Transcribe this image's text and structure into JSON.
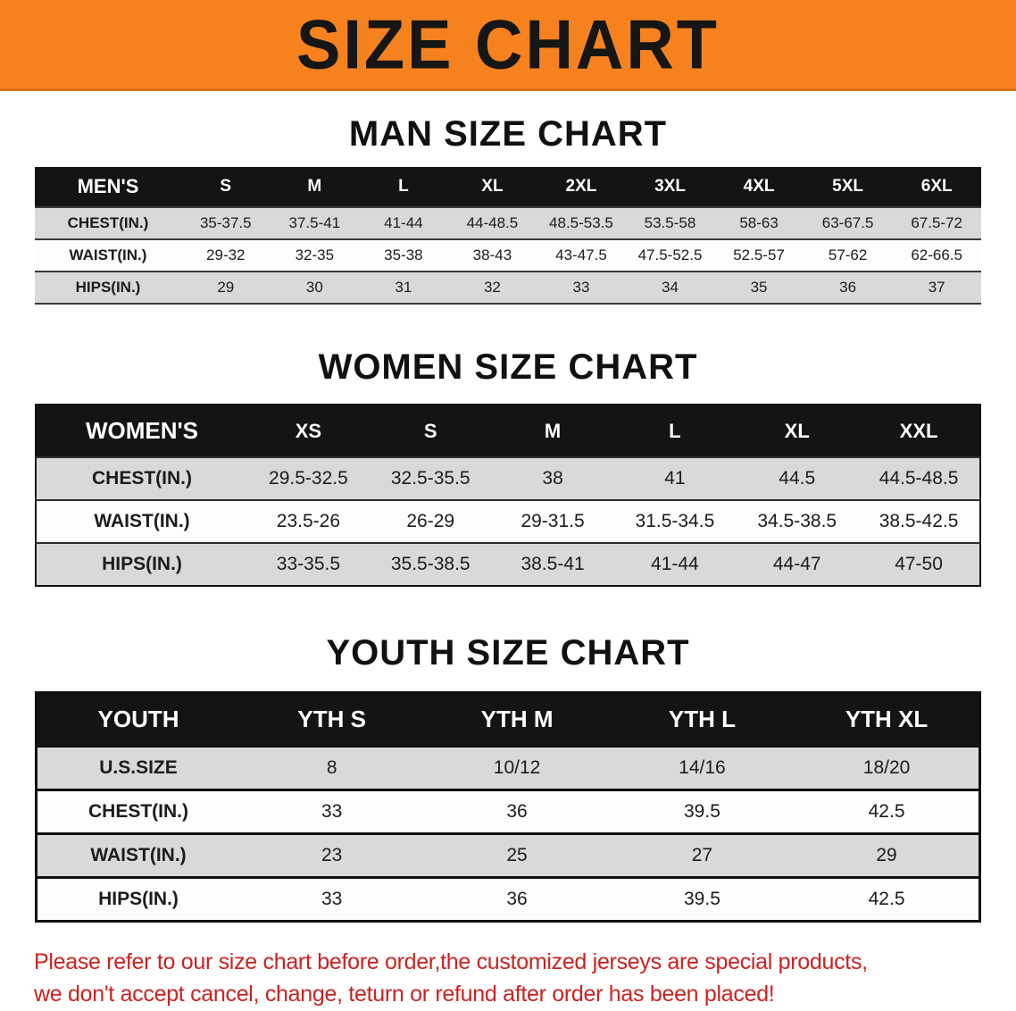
{
  "banner": {
    "title": "SIZE CHART",
    "background_color": "#f5821f",
    "text_color": "#161616"
  },
  "chart_data": [
    {
      "type": "table",
      "title": "MAN SIZE CHART",
      "header": [
        "MEN'S",
        "S",
        "M",
        "L",
        "XL",
        "2XL",
        "3XL",
        "4XL",
        "5XL",
        "6XL"
      ],
      "rows": [
        [
          "CHEST(IN.)",
          "35-37.5",
          "37.5-41",
          "41-44",
          "44-48.5",
          "48.5-53.5",
          "53.5-58",
          "58-63",
          "63-67.5",
          "67.5-72"
        ],
        [
          "WAIST(IN.)",
          "29-32",
          "32-35",
          "35-38",
          "38-43",
          "43-47.5",
          "47.5-52.5",
          "52.5-57",
          "57-62",
          "62-66.5"
        ],
        [
          "HIPS(IN.)",
          "29",
          "30",
          "31",
          "32",
          "33",
          "34",
          "35",
          "36",
          "37"
        ]
      ]
    },
    {
      "type": "table",
      "title": "WOMEN SIZE CHART",
      "header": [
        "WOMEN'S",
        "XS",
        "S",
        "M",
        "L",
        "XL",
        "XXL"
      ],
      "rows": [
        [
          "CHEST(IN.)",
          "29.5-32.5",
          "32.5-35.5",
          "38",
          "41",
          "44.5",
          "44.5-48.5"
        ],
        [
          "WAIST(IN.)",
          "23.5-26",
          "26-29",
          "29-31.5",
          "31.5-34.5",
          "34.5-38.5",
          "38.5-42.5"
        ],
        [
          "HIPS(IN.)",
          "33-35.5",
          "35.5-38.5",
          "38.5-41",
          "41-44",
          "44-47",
          "47-50"
        ]
      ]
    },
    {
      "type": "table",
      "title": "YOUTH SIZE CHART",
      "header": [
        "YOUTH",
        "YTH S",
        "YTH M",
        "YTH L",
        "YTH XL"
      ],
      "rows": [
        [
          "U.S.SIZE",
          "8",
          "10/12",
          "14/16",
          "18/20"
        ],
        [
          "CHEST(IN.)",
          "33",
          "36",
          "39.5",
          "42.5"
        ],
        [
          "WAIST(IN.)",
          "23",
          "25",
          "27",
          "29"
        ],
        [
          "HIPS(IN.)",
          "33",
          "36",
          "39.5",
          "42.5"
        ]
      ]
    }
  ],
  "footer_note": {
    "color": "#cf2020",
    "lines": [
      "Please refer to our size chart before order,the customized jerseys are special products,",
      "we don't accept cancel, change, teturn or refund after order has been placed!"
    ]
  }
}
